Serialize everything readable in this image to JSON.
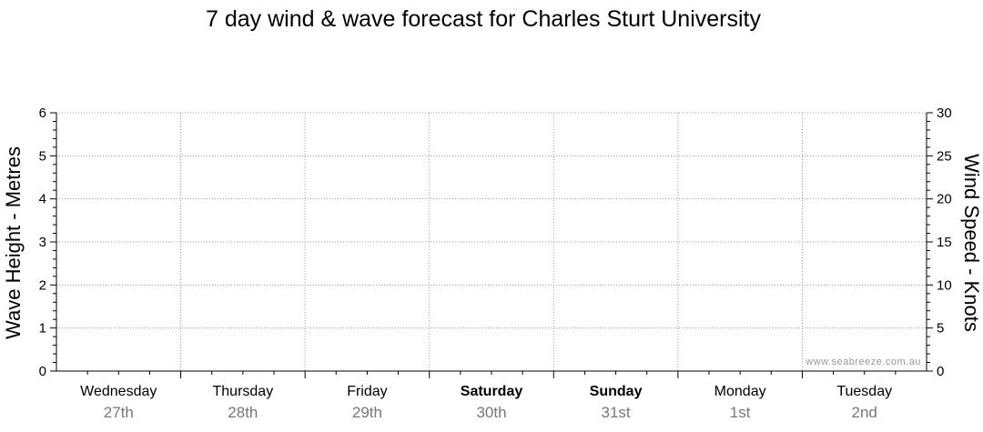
{
  "chart_data": {
    "type": "line",
    "title": "7 day wind & wave forecast for Charles Sturt University",
    "y_left": {
      "label": "Wave Height - Metres",
      "lim": [
        0,
        6
      ],
      "ticks": [
        "0",
        "1",
        "2",
        "3",
        "4",
        "5",
        "6"
      ]
    },
    "y_right": {
      "label": "Wind Speed - Knots",
      "lim": [
        0,
        30
      ],
      "ticks": [
        "0",
        "5",
        "10",
        "15",
        "20",
        "25",
        "30"
      ]
    },
    "days": [
      {
        "name": "Wednesday",
        "date": "27th",
        "bold": false
      },
      {
        "name": "Thursday",
        "date": "28th",
        "bold": false
      },
      {
        "name": "Friday",
        "date": "29th",
        "bold": false
      },
      {
        "name": "Saturday",
        "date": "30th",
        "bold": true
      },
      {
        "name": "Sunday",
        "date": "31st",
        "bold": true
      },
      {
        "name": "Monday",
        "date": "1st",
        "bold": false
      },
      {
        "name": "Tuesday",
        "date": "2nd",
        "bold": false
      }
    ],
    "series": [],
    "grid": true,
    "watermark": "www.seabreeze.com.au"
  }
}
